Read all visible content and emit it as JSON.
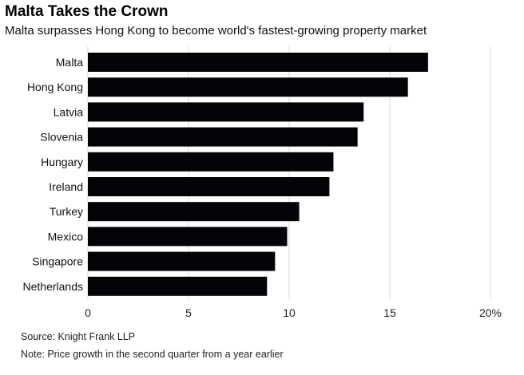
{
  "chart_data": {
    "type": "bar",
    "orientation": "horizontal",
    "title": "Malta Takes the Crown",
    "subtitle": "Malta surpasses Hong Kong to become world's fastest-growing property market",
    "categories": [
      "Malta",
      "Hong Kong",
      "Latvia",
      "Slovenia",
      "Hungary",
      "Ireland",
      "Turkey",
      "Mexico",
      "Singapore",
      "Netherlands"
    ],
    "values": [
      16.9,
      15.9,
      13.7,
      13.4,
      12.2,
      12.0,
      10.5,
      9.9,
      9.3,
      8.9
    ],
    "xlim": [
      0,
      20
    ],
    "xticks": [
      0,
      5,
      10,
      15,
      20
    ],
    "xtick_labels": [
      "0",
      "5",
      "10",
      "15",
      "20%"
    ],
    "grid": true,
    "bar_color": "#050308",
    "source": "Source: Knight Frank LLP",
    "note": "Note: Price growth in the second quarter from a year earlier"
  }
}
